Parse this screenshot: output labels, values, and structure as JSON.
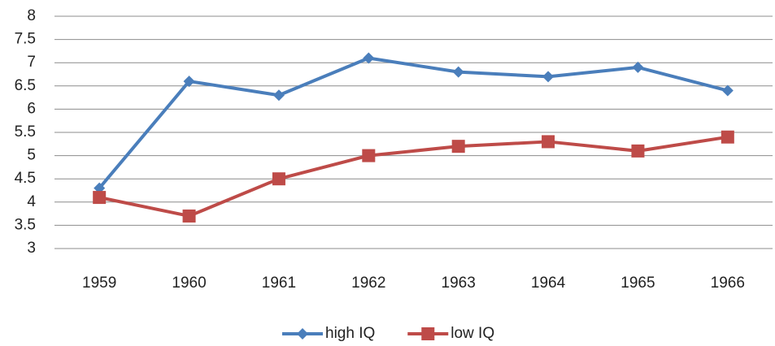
{
  "chart_data": {
    "type": "line",
    "categories": [
      "1959",
      "1960",
      "1961",
      "1962",
      "1963",
      "1964",
      "1965",
      "1966"
    ],
    "series": [
      {
        "name": "high IQ",
        "color": "#4a7ebb",
        "marker": "diamond",
        "values": [
          4.3,
          6.6,
          6.3,
          7.1,
          6.8,
          6.7,
          6.9,
          6.4
        ]
      },
      {
        "name": "low IQ",
        "color": "#be4b48",
        "marker": "square",
        "values": [
          4.1,
          3.7,
          4.5,
          5.0,
          5.2,
          5.3,
          5.1,
          5.4
        ]
      }
    ],
    "ylim": [
      3,
      8
    ],
    "yticks": [
      3,
      3.5,
      4,
      4.5,
      5,
      5.5,
      6,
      6.5,
      7,
      7.5,
      8
    ],
    "grid": true,
    "legend": "bottom"
  }
}
